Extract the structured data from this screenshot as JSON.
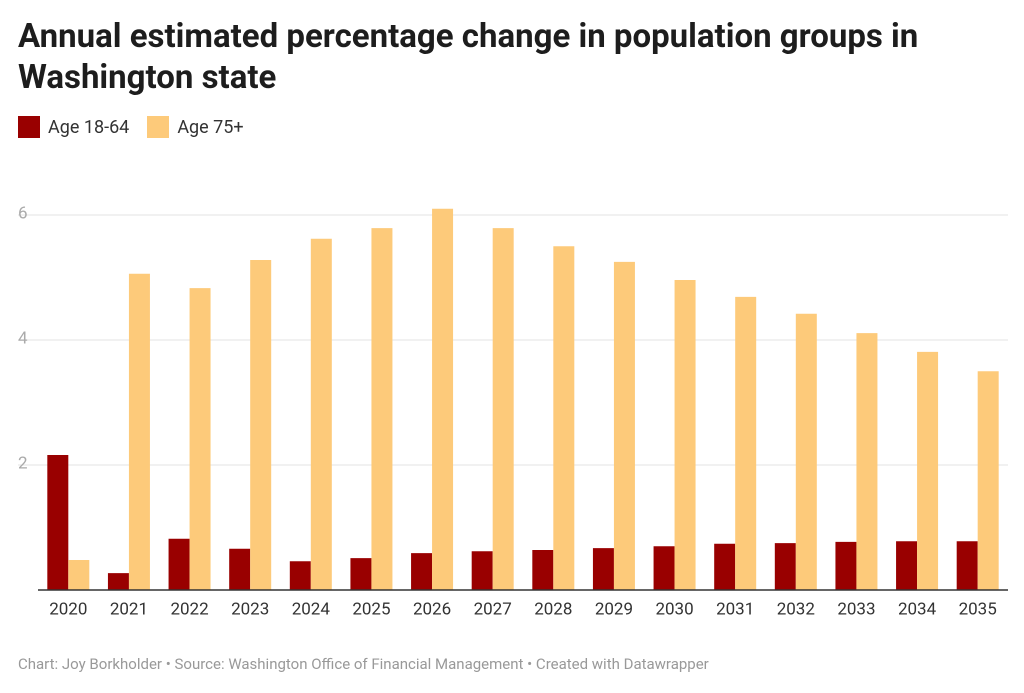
{
  "chart_data": {
    "type": "bar",
    "title": "Annual estimated percentage change in population groups in Washington state",
    "source": "Chart: Joy Borkholder • Source: Washington Office of Financial Management • Created with Datawrapper",
    "categories": [
      "2020",
      "2021",
      "2022",
      "2023",
      "2024",
      "2025",
      "2026",
      "2027",
      "2028",
      "2029",
      "2030",
      "2031",
      "2032",
      "2033",
      "2034",
      "2035"
    ],
    "series": [
      {
        "name": "Age 18-64",
        "color": "#990000",
        "values": [
          2.16,
          0.27,
          0.82,
          0.66,
          0.46,
          0.51,
          0.59,
          0.62,
          0.64,
          0.67,
          0.7,
          0.74,
          0.75,
          0.77,
          0.78,
          0.78
        ]
      },
      {
        "name": "Age 75+",
        "color": "#fdca7a",
        "values": [
          0.48,
          5.06,
          4.83,
          5.28,
          5.62,
          5.79,
          6.1,
          5.79,
          5.5,
          5.25,
          4.96,
          4.69,
          4.42,
          4.11,
          3.81,
          3.5
        ]
      }
    ],
    "ylim": [
      0,
      6.2
    ],
    "yticks": [
      2,
      4,
      6
    ],
    "grid": true
  }
}
